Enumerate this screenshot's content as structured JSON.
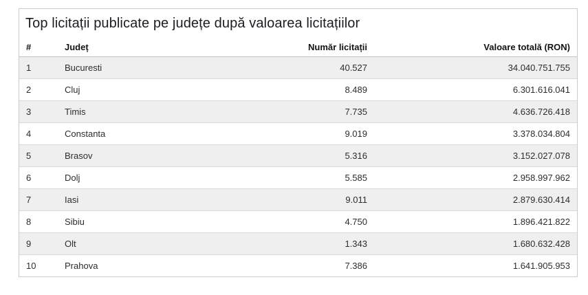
{
  "chart_data": {
    "type": "table",
    "title": "Top licitații publicate pe județe după valoarea licitațiilor",
    "columns": [
      "#",
      "Județ",
      "Număr licitații",
      "Valoare totală (RON)"
    ],
    "rows": [
      [
        "1",
        "Bucuresti",
        "40.527",
        "34.040.751.755"
      ],
      [
        "2",
        "Cluj",
        "8.489",
        "6.301.616.041"
      ],
      [
        "3",
        "Timis",
        "7.735",
        "4.636.726.418"
      ],
      [
        "4",
        "Constanta",
        "9.019",
        "3.378.034.804"
      ],
      [
        "5",
        "Brasov",
        "5.316",
        "3.152.027.078"
      ],
      [
        "6",
        "Dolj",
        "5.585",
        "2.958.997.962"
      ],
      [
        "7",
        "Iasi",
        "9.011",
        "2.879.630.414"
      ],
      [
        "8",
        "Sibiu",
        "4.750",
        "1.896.421.822"
      ],
      [
        "9",
        "Olt",
        "1.343",
        "1.680.632.428"
      ],
      [
        "10",
        "Prahova",
        "7.386",
        "1.641.905.953"
      ]
    ],
    "layout": {
      "striped": true,
      "odd_row_color": "#efefef",
      "border_color": "#d9d9d9",
      "card_border_color": "#cbcbcb",
      "numeric_columns_right_aligned": true
    }
  }
}
